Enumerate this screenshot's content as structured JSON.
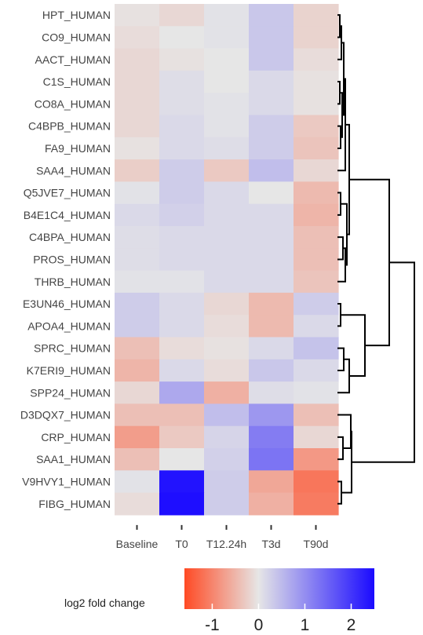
{
  "chart_data": {
    "type": "heatmap",
    "title": "",
    "xlabel": "",
    "ylabel": "",
    "columns": [
      "Baseline",
      "T0",
      "T12.24h",
      "T3d",
      "T90d"
    ],
    "rows": [
      "HPT_HUMAN",
      "CO9_HUMAN",
      "AACT_HUMAN",
      "C1S_HUMAN",
      "CO8A_HUMAN",
      "C4BPB_HUMAN",
      "FA9_HUMAN",
      "SAA4_HUMAN",
      "Q5JVE7_HUMAN",
      "B4E1C4_HUMAN",
      "C4BPA_HUMAN",
      "PROS_HUMAN",
      "THRB_HUMAN",
      "E3UN46_HUMAN",
      "APOA4_HUMAN",
      "SPRC_HUMAN",
      "K7ERI9_HUMAN",
      "SPP24_HUMAN",
      "D3DQX7_HUMAN",
      "CRP_HUMAN",
      "SAA1_HUMAN",
      "V9HVY1_HUMAN",
      "FIBG_HUMAN"
    ],
    "values": [
      [
        -0.05,
        -0.15,
        0.05,
        0.35,
        -0.2
      ],
      [
        -0.1,
        0.0,
        0.05,
        0.35,
        -0.2
      ],
      [
        -0.15,
        -0.05,
        0.0,
        0.35,
        -0.1
      ],
      [
        -0.15,
        0.1,
        0.0,
        0.15,
        -0.05
      ],
      [
        -0.15,
        0.1,
        0.05,
        0.15,
        -0.05
      ],
      [
        -0.15,
        0.15,
        0.05,
        0.3,
        -0.3
      ],
      [
        -0.05,
        0.15,
        0.1,
        0.3,
        -0.35
      ],
      [
        -0.25,
        0.3,
        -0.3,
        0.45,
        -0.15
      ],
      [
        0.05,
        0.3,
        0.15,
        0.0,
        -0.45
      ],
      [
        0.15,
        0.25,
        0.15,
        0.15,
        -0.5
      ],
      [
        0.1,
        0.15,
        0.15,
        0.15,
        -0.4
      ],
      [
        0.1,
        0.15,
        0.15,
        0.15,
        -0.4
      ],
      [
        0.05,
        0.05,
        0.15,
        0.15,
        -0.35
      ],
      [
        0.3,
        0.15,
        -0.15,
        -0.45,
        0.3
      ],
      [
        0.3,
        0.15,
        -0.1,
        -0.45,
        0.15
      ],
      [
        -0.4,
        -0.1,
        -0.05,
        0.15,
        0.4
      ],
      [
        -0.5,
        0.15,
        -0.1,
        0.35,
        0.15
      ],
      [
        -0.15,
        0.7,
        -0.55,
        0.1,
        0.05
      ],
      [
        -0.4,
        -0.4,
        0.45,
        0.9,
        -0.4
      ],
      [
        -0.75,
        -0.3,
        0.2,
        1.2,
        -0.15
      ],
      [
        -0.4,
        0.0,
        0.25,
        1.3,
        -0.8
      ],
      [
        0.05,
        2.4,
        0.3,
        -0.65,
        -1.15
      ],
      [
        -0.1,
        2.45,
        0.3,
        -0.55,
        -1.1
      ]
    ],
    "legend": {
      "title": "log2 fold change",
      "ticks": [
        -1,
        0,
        1,
        2
      ],
      "range": [
        -1.6,
        2.5
      ],
      "placement": "bottom"
    },
    "colors": {
      "low": "#ff4a24",
      "mid": "#e6e6e6",
      "high": "#1a0aff"
    },
    "dendrogram": "row clustering tree shown at right"
  }
}
